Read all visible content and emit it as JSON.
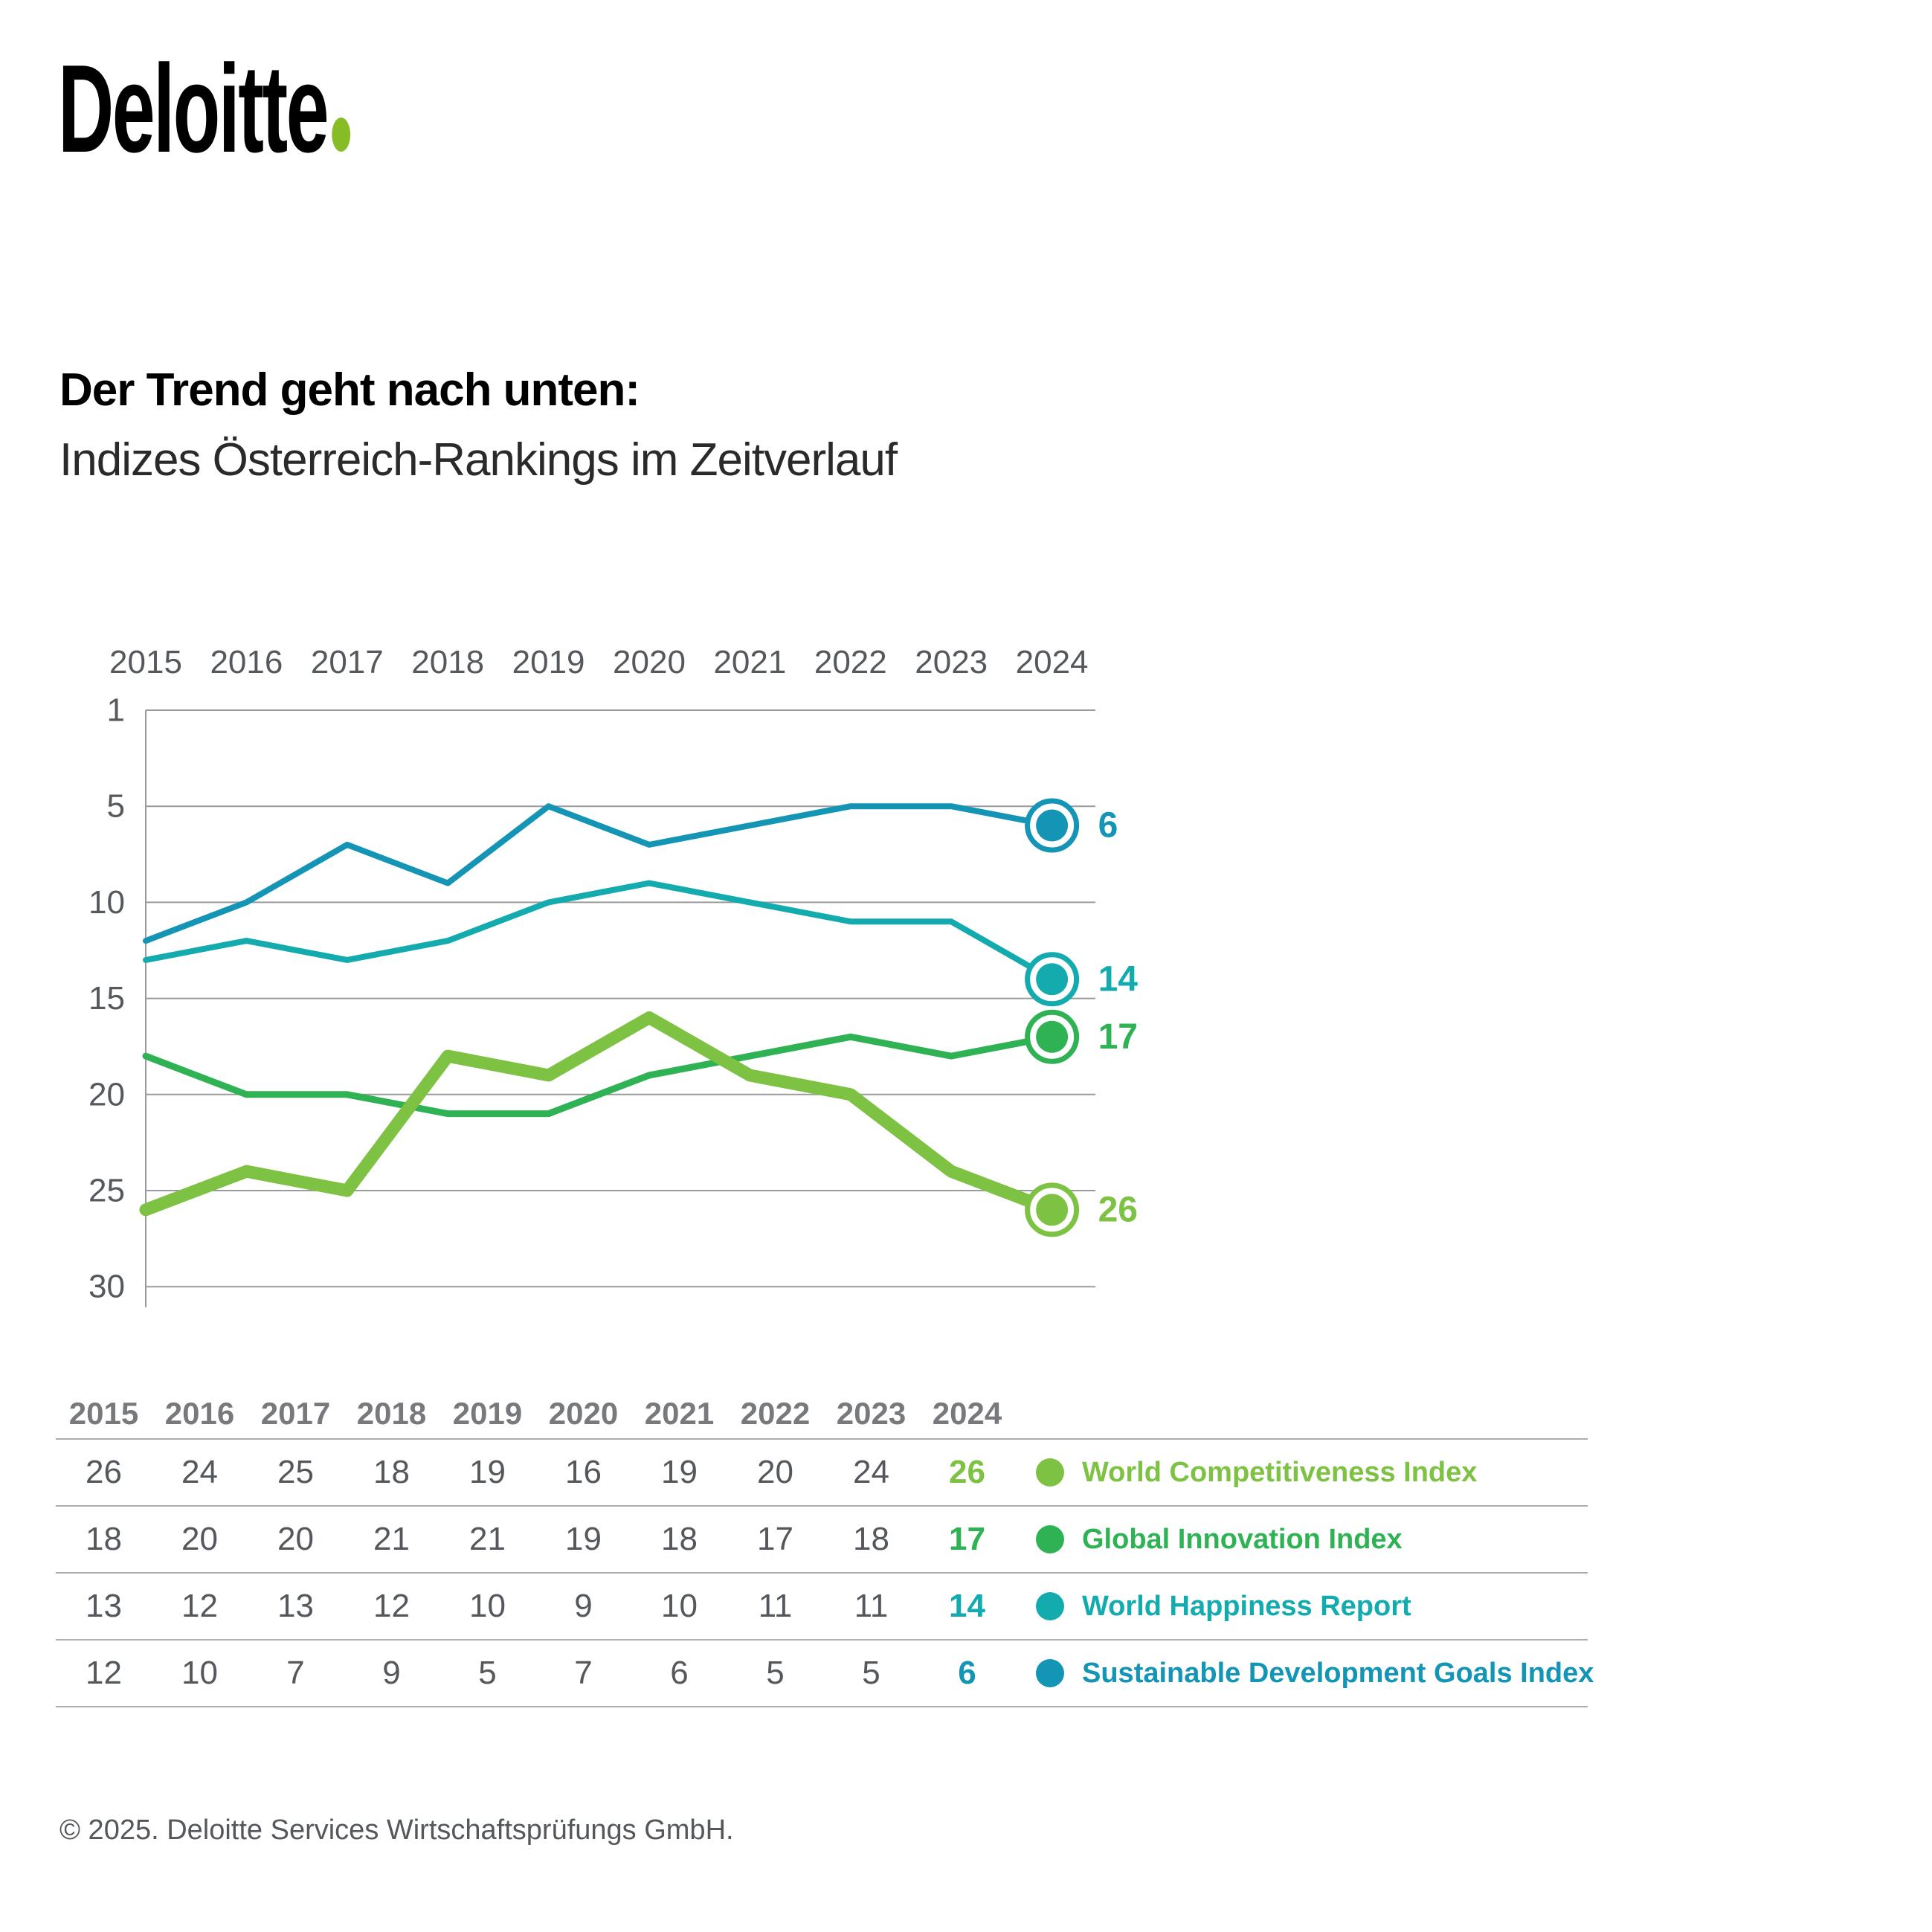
{
  "brand": {
    "logo_text": "Deloitte"
  },
  "title": {
    "line1": "Der Trend geht nach unten:",
    "line2": "Indizes Österreich-Rankings im Zeitverlauf"
  },
  "colors": {
    "wci": "#7DC243",
    "gii": "#2EB253",
    "whr": "#14ABAF",
    "sdg": "#1495B6",
    "logo_dot": "#86BC25",
    "grid": "#9b9b9b",
    "axis_text": "#55585c"
  },
  "chart_data": {
    "type": "line",
    "title": "Indizes Österreich-Rankings im Zeitverlauf",
    "x": [
      "2015",
      "2016",
      "2017",
      "2018",
      "2019",
      "2020",
      "2021",
      "2022",
      "2023",
      "2024"
    ],
    "y_axis": {
      "ticks": [
        1,
        5,
        10,
        15,
        20,
        25,
        30
      ],
      "inverted": true,
      "meaning": "rank (1 = best)"
    },
    "grid": true,
    "legend_position": "right-of-table",
    "series": [
      {
        "id": "sdg",
        "name": "Sustainable Development Goals Index",
        "values": [
          12,
          10,
          7,
          9,
          5,
          7,
          6,
          5,
          5,
          6
        ],
        "end_label": "6"
      },
      {
        "id": "whr",
        "name": "World Happiness Report",
        "values": [
          13,
          12,
          13,
          12,
          10,
          9,
          10,
          11,
          11,
          14
        ],
        "end_label": "14"
      },
      {
        "id": "gii",
        "name": "Global Innovation Index",
        "values": [
          18,
          20,
          20,
          21,
          21,
          19,
          18,
          17,
          18,
          17
        ],
        "end_label": "17"
      },
      {
        "id": "wci",
        "name": "World Competitiveness Index",
        "values": [
          26,
          24,
          25,
          18,
          19,
          16,
          19,
          20,
          24,
          26
        ],
        "end_label": "26"
      }
    ]
  },
  "table": {
    "years": [
      "2015",
      "2016",
      "2017",
      "2018",
      "2019",
      "2020",
      "2021",
      "2022",
      "2023",
      "2024"
    ],
    "rows": [
      {
        "series": "wci",
        "values": [
          "26",
          "24",
          "25",
          "18",
          "19",
          "16",
          "19",
          "20",
          "24",
          "26"
        ],
        "label": "World Competitiveness Index"
      },
      {
        "series": "gii",
        "values": [
          "18",
          "20",
          "20",
          "21",
          "21",
          "19",
          "18",
          "17",
          "18",
          "17"
        ],
        "label": "Global Innovation Index"
      },
      {
        "series": "whr",
        "values": [
          "13",
          "12",
          "13",
          "12",
          "10",
          "9",
          "10",
          "11",
          "11",
          "14"
        ],
        "label": "World Happiness Report"
      },
      {
        "series": "sdg",
        "values": [
          "12",
          "10",
          "7",
          "9",
          "5",
          "7",
          "6",
          "5",
          "5",
          "6"
        ],
        "label": "Sustainable Development Goals Index"
      }
    ]
  },
  "footer": {
    "text": "© 2025. Deloitte Services Wirtschaftsprüfungs GmbH."
  }
}
